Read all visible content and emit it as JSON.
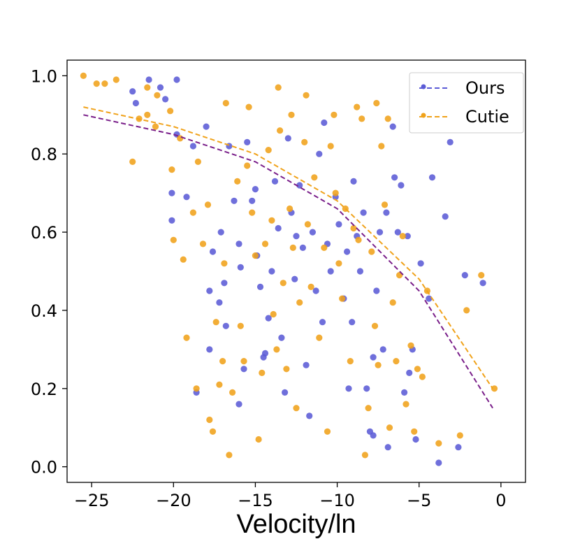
{
  "chart_data": {
    "type": "scatter",
    "title": "",
    "xlabel": "Velocity/ln",
    "ylabel": "",
    "xlim": [
      -26.5,
      1.5
    ],
    "ylim": [
      -0.04,
      1.04
    ],
    "xticks": [
      -25,
      -20,
      -15,
      -10,
      -5,
      0
    ],
    "yticks": [
      0.0,
      0.2,
      0.4,
      0.6,
      0.8,
      1.0
    ],
    "xtick_labels": [
      "−25",
      "−20",
      "−15",
      "−10",
      "−5",
      "0"
    ],
    "ytick_labels": [
      "0.0",
      "0.2",
      "0.4",
      "0.6",
      "0.8",
      "1.0"
    ],
    "grid": false,
    "legend_position": "top-right",
    "series": [
      {
        "name": "Ours",
        "color": "#5b5bd6",
        "trend_color": "#7a1f8a",
        "trend": [
          [
            -25.5,
            0.9
          ],
          [
            -20,
            0.85
          ],
          [
            -15,
            0.78
          ],
          [
            -10,
            0.66
          ],
          [
            -5,
            0.45
          ],
          [
            -0.5,
            0.15
          ]
        ],
        "points": [
          [
            -22.5,
            0.96
          ],
          [
            -22.3,
            0.93
          ],
          [
            -21.5,
            0.99
          ],
          [
            -20.8,
            0.97
          ],
          [
            -20.5,
            0.94
          ],
          [
            -19.8,
            0.99
          ],
          [
            -20.1,
            0.7
          ],
          [
            -20.1,
            0.63
          ],
          [
            -19.8,
            0.85
          ],
          [
            -19.2,
            0.69
          ],
          [
            -18.8,
            0.82
          ],
          [
            -18.6,
            0.19
          ],
          [
            -18.0,
            0.87
          ],
          [
            -17.8,
            0.45
          ],
          [
            -17.8,
            0.3
          ],
          [
            -17.6,
            0.55
          ],
          [
            -17.2,
            0.42
          ],
          [
            -17.1,
            0.6
          ],
          [
            -16.9,
            0.47
          ],
          [
            -16.8,
            0.36
          ],
          [
            -16.6,
            0.82
          ],
          [
            -16.3,
            0.68
          ],
          [
            -16.0,
            0.57
          ],
          [
            -15.9,
            0.51
          ],
          [
            -15.7,
            0.25
          ],
          [
            -15.5,
            0.83
          ],
          [
            -15.2,
            0.68
          ],
          [
            -14.9,
            0.54
          ],
          [
            -14.7,
            0.46
          ],
          [
            -14.5,
            0.28
          ],
          [
            -14.2,
            0.38
          ],
          [
            -14.0,
            0.5
          ],
          [
            -13.8,
            0.73
          ],
          [
            -13.6,
            0.61
          ],
          [
            -13.4,
            0.33
          ],
          [
            -13.2,
            0.19
          ],
          [
            -13.0,
            0.84
          ],
          [
            -12.8,
            0.65
          ],
          [
            -12.6,
            0.48
          ],
          [
            -12.3,
            0.72
          ],
          [
            -12.1,
            0.56
          ],
          [
            -11.9,
            0.26
          ],
          [
            -11.7,
            0.13
          ],
          [
            -11.5,
            0.6
          ],
          [
            -11.3,
            0.45
          ],
          [
            -11.1,
            0.8
          ],
          [
            -10.9,
            0.37
          ],
          [
            -10.6,
            0.57
          ],
          [
            -10.4,
            0.5
          ],
          [
            -10.1,
            0.69
          ],
          [
            -9.9,
            0.62
          ],
          [
            -9.6,
            0.43
          ],
          [
            -9.4,
            0.55
          ],
          [
            -9.1,
            0.37
          ],
          [
            -9.0,
            0.73
          ],
          [
            -8.8,
            0.59
          ],
          [
            -8.6,
            0.5
          ],
          [
            -8.4,
            0.65
          ],
          [
            -8.2,
            0.2
          ],
          [
            -8.0,
            0.09
          ],
          [
            -7.8,
            0.28
          ],
          [
            -7.6,
            0.45
          ],
          [
            -7.4,
            0.6
          ],
          [
            -7.2,
            0.3
          ],
          [
            -7.0,
            0.65
          ],
          [
            -6.9,
            0.05
          ],
          [
            -6.6,
            0.87
          ],
          [
            -6.3,
            0.6
          ],
          [
            -6.1,
            0.72
          ],
          [
            -5.9,
            0.19
          ],
          [
            -5.7,
            0.59
          ],
          [
            -5.6,
            0.24
          ],
          [
            -5.4,
            0.3
          ],
          [
            -5.2,
            0.07
          ],
          [
            -4.9,
            0.52
          ],
          [
            -4.7,
            0.93
          ],
          [
            -4.4,
            0.43
          ],
          [
            -4.2,
            0.74
          ],
          [
            -3.8,
            0.01
          ],
          [
            -3.4,
            0.64
          ],
          [
            -3.1,
            0.83
          ],
          [
            -2.6,
            0.05
          ],
          [
            -2.2,
            0.49
          ],
          [
            -1.1,
            0.47
          ],
          [
            -16.0,
            0.16
          ],
          [
            -15.0,
            0.71
          ],
          [
            -14.4,
            0.29
          ],
          [
            -12.5,
            0.59
          ],
          [
            -10.8,
            0.88
          ],
          [
            -9.3,
            0.2
          ],
          [
            -7.8,
            0.08
          ],
          [
            -6.5,
            0.74
          ]
        ]
      },
      {
        "name": "Cutie",
        "color": "#f0a21a",
        "trend_color": "#f0a21a",
        "trend": [
          [
            -25.5,
            0.92
          ],
          [
            -20,
            0.87
          ],
          [
            -15,
            0.8
          ],
          [
            -10,
            0.68
          ],
          [
            -5,
            0.48
          ],
          [
            -0.5,
            0.2
          ]
        ],
        "points": [
          [
            -25.5,
            1.0
          ],
          [
            -24.7,
            0.98
          ],
          [
            -24.2,
            0.98
          ],
          [
            -23.5,
            0.99
          ],
          [
            -22.5,
            0.78
          ],
          [
            -22.1,
            0.89
          ],
          [
            -21.6,
            0.9
          ],
          [
            -21.1,
            0.87
          ],
          [
            -20.2,
            0.91
          ],
          [
            -20.1,
            0.76
          ],
          [
            -20.0,
            0.58
          ],
          [
            -19.6,
            0.84
          ],
          [
            -19.4,
            0.53
          ],
          [
            -19.2,
            0.33
          ],
          [
            -18.8,
            0.65
          ],
          [
            -18.6,
            0.2
          ],
          [
            -18.2,
            0.57
          ],
          [
            -17.9,
            0.67
          ],
          [
            -17.8,
            0.12
          ],
          [
            -17.6,
            0.09
          ],
          [
            -17.4,
            0.37
          ],
          [
            -17.2,
            0.21
          ],
          [
            -17.0,
            0.27
          ],
          [
            -16.9,
            0.52
          ],
          [
            -16.6,
            0.03
          ],
          [
            -16.4,
            0.19
          ],
          [
            -16.1,
            0.73
          ],
          [
            -15.9,
            0.36
          ],
          [
            -15.7,
            0.27
          ],
          [
            -15.5,
            0.77
          ],
          [
            -15.2,
            0.65
          ],
          [
            -15.0,
            0.54
          ],
          [
            -14.8,
            0.07
          ],
          [
            -14.6,
            0.24
          ],
          [
            -14.4,
            0.57
          ],
          [
            -14.2,
            0.81
          ],
          [
            -14.0,
            0.63
          ],
          [
            -13.9,
            0.39
          ],
          [
            -13.7,
            0.3
          ],
          [
            -13.5,
            0.86
          ],
          [
            -13.3,
            0.47
          ],
          [
            -13.1,
            0.25
          ],
          [
            -12.9,
            0.66
          ],
          [
            -12.7,
            0.56
          ],
          [
            -12.5,
            0.15
          ],
          [
            -12.3,
            0.42
          ],
          [
            -12.0,
            0.83
          ],
          [
            -11.8,
            0.62
          ],
          [
            -11.6,
            0.46
          ],
          [
            -11.4,
            0.74
          ],
          [
            -11.1,
            0.33
          ],
          [
            -10.8,
            0.56
          ],
          [
            -10.6,
            0.09
          ],
          [
            -10.4,
            0.82
          ],
          [
            -10.1,
            0.7
          ],
          [
            -9.9,
            0.52
          ],
          [
            -9.7,
            0.43
          ],
          [
            -9.5,
            0.66
          ],
          [
            -9.2,
            0.27
          ],
          [
            -9.0,
            0.61
          ],
          [
            -8.7,
            0.58
          ],
          [
            -8.5,
            0.89
          ],
          [
            -8.3,
            0.03
          ],
          [
            -8.1,
            0.15
          ],
          [
            -7.9,
            0.55
          ],
          [
            -7.7,
            0.36
          ],
          [
            -7.5,
            0.26
          ],
          [
            -7.3,
            0.82
          ],
          [
            -7.1,
            0.67
          ],
          [
            -6.8,
            0.1
          ],
          [
            -6.6,
            0.42
          ],
          [
            -6.4,
            0.27
          ],
          [
            -6.2,
            0.49
          ],
          [
            -6.0,
            0.59
          ],
          [
            -5.8,
            0.16
          ],
          [
            -5.5,
            0.31
          ],
          [
            -5.3,
            0.09
          ],
          [
            -5.1,
            0.25
          ],
          [
            -4.8,
            0.23
          ],
          [
            -4.5,
            0.45
          ],
          [
            -3.8,
            0.06
          ],
          [
            -2.5,
            0.08
          ],
          [
            -2.1,
            0.4
          ],
          [
            -1.2,
            0.49
          ],
          [
            -0.4,
            0.2
          ],
          [
            -21.6,
            0.97
          ],
          [
            -21.0,
            0.95
          ],
          [
            -18.5,
            0.78
          ],
          [
            -16.8,
            0.93
          ],
          [
            -15.4,
            0.92
          ],
          [
            -13.6,
            0.97
          ],
          [
            -12.8,
            0.9
          ],
          [
            -11.9,
            0.95
          ],
          [
            -10.2,
            0.9
          ],
          [
            -8.8,
            0.92
          ],
          [
            -7.6,
            0.93
          ],
          [
            -6.9,
            0.89
          ],
          [
            -4.8,
            0.93
          ]
        ]
      }
    ]
  }
}
